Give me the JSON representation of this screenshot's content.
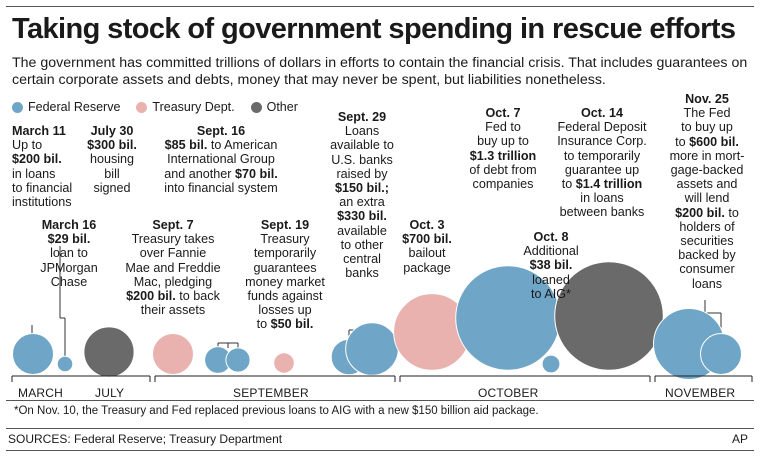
{
  "title": "Taking stock of government spending in rescue efforts",
  "subtitle": "The government has committed trillions of dollars in efforts to contain the financial crisis. That includes guarantees on certain corporate assets and debts, money that may never be spent, but liabilities nonetheless.",
  "legend": [
    {
      "label": "Federal Reserve",
      "color": "#6fa5c6"
    },
    {
      "label": "Treasury Dept.",
      "color": "#e9b2af"
    },
    {
      "label": "Other",
      "color": "#6a6a6a"
    }
  ],
  "months": [
    "MARCH",
    "JULY",
    "SEPTEMBER",
    "OCTOBER",
    "NOVEMBER"
  ],
  "footnote": "*On Nov. 10, the Treasury and Fed replaced previous loans to AIG with a new $150 billion aid package.",
  "sources": "SOURCES: Federal Reserve; Treasury Department",
  "credit": "AP",
  "chart_data": {
    "type": "bubble",
    "unit": "billions of dollars",
    "bubbles": [
      {
        "date": "March 11",
        "source": "Federal Reserve",
        "value": 200
      },
      {
        "date": "March 16",
        "source": "Federal Reserve",
        "value": 29
      },
      {
        "date": "July 30",
        "source": "Other",
        "value": 300
      },
      {
        "date": "Sept. 7",
        "source": "Treasury Dept.",
        "value": 200
      },
      {
        "date": "Sept. 16",
        "source": "Federal Reserve",
        "value": 85
      },
      {
        "date": "Sept. 16",
        "source": "Federal Reserve",
        "value": 70
      },
      {
        "date": "Sept. 19",
        "source": "Treasury Dept.",
        "value": 50
      },
      {
        "date": "Sept. 29",
        "source": "Federal Reserve",
        "value": 150
      },
      {
        "date": "Sept. 29",
        "source": "Federal Reserve",
        "value": 330
      },
      {
        "date": "Oct. 3",
        "source": "Treasury Dept.",
        "value": 700
      },
      {
        "date": "Oct. 7",
        "source": "Federal Reserve",
        "value": 1300
      },
      {
        "date": "Oct. 8",
        "source": "Federal Reserve",
        "value": 38
      },
      {
        "date": "Oct. 14",
        "source": "Other",
        "value": 1400
      },
      {
        "date": "Nov. 25",
        "source": "Federal Reserve",
        "value": 600
      },
      {
        "date": "Nov. 25",
        "source": "Federal Reserve",
        "value": 200
      }
    ]
  },
  "annotations": [
    {
      "lines": [
        [
          [
            "b",
            "March 11"
          ]
        ],
        [
          [
            "t",
            "Up to"
          ]
        ],
        [
          [
            "b",
            "$200 bil."
          ],
          [
            "t",
            " "
          ]
        ],
        [
          [
            "t",
            "in loans"
          ]
        ],
        [
          [
            "t",
            "to financial"
          ]
        ],
        [
          [
            "t",
            "institutions"
          ]
        ]
      ]
    },
    {
      "lines": [
        [
          [
            "b",
            "March 16"
          ]
        ],
        [
          [
            "b",
            "$29 bil."
          ]
        ],
        [
          [
            "t",
            "loan to"
          ]
        ],
        [
          [
            "t",
            "JPMorgan"
          ]
        ],
        [
          [
            "t",
            "Chase"
          ]
        ]
      ]
    },
    {
      "lines": [
        [
          [
            "b",
            "July 30"
          ]
        ],
        [
          [
            "b",
            "$300 bil."
          ]
        ],
        [
          [
            "t",
            "housing"
          ]
        ],
        [
          [
            "t",
            "bill"
          ]
        ],
        [
          [
            "t",
            "signed"
          ]
        ]
      ]
    },
    {
      "lines": [
        [
          [
            "b",
            "Sept. 7"
          ]
        ],
        [
          [
            "t",
            "Treasury takes"
          ]
        ],
        [
          [
            "t",
            "over Fannie"
          ]
        ],
        [
          [
            "t",
            "Mae and Freddie"
          ]
        ],
        [
          [
            "t",
            "Mac, pledging"
          ]
        ],
        [
          [
            "b",
            "$200 bil."
          ],
          [
            "t",
            " to back"
          ]
        ],
        [
          [
            "t",
            "their assets"
          ]
        ]
      ]
    },
    {
      "lines": [
        [
          [
            "b",
            "Sept. 16"
          ]
        ],
        [
          [
            "b",
            "$85 bil."
          ],
          [
            "t",
            " to American"
          ]
        ],
        [
          [
            "t",
            "International Group"
          ]
        ],
        [
          [
            "t",
            "and another "
          ],
          [
            "b",
            "$70 bil."
          ]
        ],
        [
          [
            "t",
            "into financial system"
          ]
        ]
      ]
    },
    {
      "lines": [
        [
          [
            "b",
            "Sept. 19"
          ]
        ],
        [
          [
            "t",
            "Treasury"
          ]
        ],
        [
          [
            "t",
            "temporarily"
          ]
        ],
        [
          [
            "t",
            "guarantees"
          ]
        ],
        [
          [
            "t",
            "money market"
          ]
        ],
        [
          [
            "t",
            "funds against"
          ]
        ],
        [
          [
            "t",
            "losses up"
          ]
        ],
        [
          [
            "t",
            "to "
          ],
          [
            "b",
            "$50 bil."
          ]
        ]
      ]
    },
    {
      "lines": [
        [
          [
            "b",
            "Sept. 29"
          ]
        ],
        [
          [
            "t",
            "Loans"
          ]
        ],
        [
          [
            "t",
            "available to"
          ]
        ],
        [
          [
            "t",
            "U.S. banks"
          ]
        ],
        [
          [
            "t",
            "raised by"
          ]
        ],
        [
          [
            "b",
            "$150 bil.;"
          ]
        ],
        [
          [
            "t",
            "an extra"
          ]
        ],
        [
          [
            "b",
            "$330 bil."
          ]
        ],
        [
          [
            "t",
            "available"
          ]
        ],
        [
          [
            "t",
            "to other"
          ]
        ],
        [
          [
            "t",
            "central"
          ]
        ],
        [
          [
            "t",
            "banks"
          ]
        ]
      ]
    },
    {
      "lines": [
        [
          [
            "b",
            "Oct. 3"
          ]
        ],
        [
          [
            "b",
            "$700 bil."
          ]
        ],
        [
          [
            "t",
            "bailout"
          ]
        ],
        [
          [
            "t",
            "package"
          ]
        ]
      ]
    },
    {
      "lines": [
        [
          [
            "b",
            "Oct. 7"
          ]
        ],
        [
          [
            "t",
            "Fed to"
          ]
        ],
        [
          [
            "t",
            "buy up to"
          ]
        ],
        [
          [
            "b",
            "$1.3 trillion"
          ]
        ],
        [
          [
            "t",
            "of debt from"
          ]
        ],
        [
          [
            "t",
            "companies"
          ]
        ]
      ]
    },
    {
      "lines": [
        [
          [
            "b",
            "Oct. 8"
          ]
        ],
        [
          [
            "t",
            "Additional"
          ]
        ],
        [
          [
            "b",
            "$38 bil."
          ]
        ],
        [
          [
            "t",
            "loaned"
          ]
        ],
        [
          [
            "t",
            "to AIG*"
          ]
        ]
      ]
    },
    {
      "lines": [
        [
          [
            "b",
            "Oct. 14"
          ]
        ],
        [
          [
            "t",
            "Federal Deposit"
          ]
        ],
        [
          [
            "t",
            "Insurance Corp."
          ]
        ],
        [
          [
            "t",
            "to temporarily"
          ]
        ],
        [
          [
            "t",
            "guarantee up"
          ]
        ],
        [
          [
            "t",
            "to "
          ],
          [
            "b",
            "$1.4 trillion"
          ]
        ],
        [
          [
            "t",
            "in loans"
          ]
        ],
        [
          [
            "t",
            "between banks"
          ]
        ]
      ]
    },
    {
      "lines": [
        [
          [
            "b",
            "Nov. 25"
          ]
        ],
        [
          [
            "t",
            "The Fed"
          ]
        ],
        [
          [
            "t",
            "to buy up"
          ]
        ],
        [
          [
            "t",
            "to "
          ],
          [
            "b",
            "$600 bil."
          ]
        ],
        [
          [
            "t",
            "more in mort-"
          ]
        ],
        [
          [
            "t",
            "gage-backed"
          ]
        ],
        [
          [
            "t",
            "assets and"
          ]
        ],
        [
          [
            "t",
            "will lend"
          ]
        ],
        [
          [
            "b",
            "$200 bil."
          ],
          [
            "t",
            " to"
          ]
        ],
        [
          [
            "t",
            "holders of"
          ]
        ],
        [
          [
            "t",
            "securities"
          ]
        ],
        [
          [
            "t",
            "backed by"
          ]
        ],
        [
          [
            "t",
            "consumer"
          ]
        ],
        [
          [
            "t",
            "loans"
          ]
        ]
      ]
    }
  ]
}
